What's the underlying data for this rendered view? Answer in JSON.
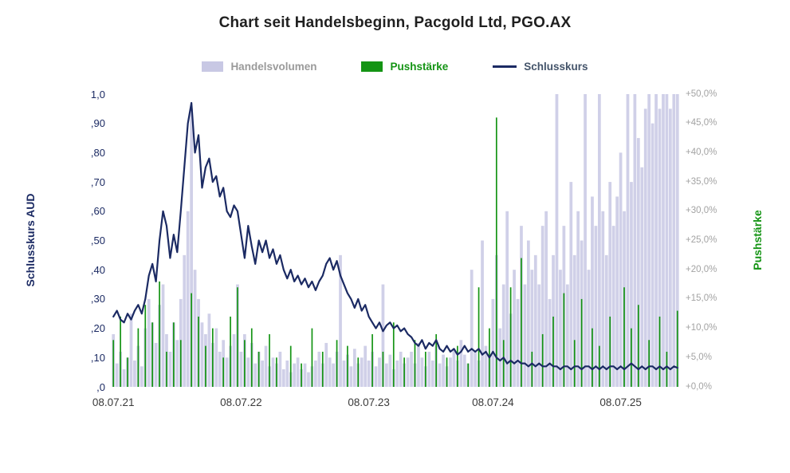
{
  "chart_data": {
    "type": "line",
    "subtype": "combo: volume bars (hidden axis) + push bars (right axis) + close line (left axis)",
    "title": "Chart seit Handelsbeginn, Pacgold Ltd, PGO.AX",
    "legend": [
      {
        "label": "Handelsvolumen",
        "color": "#c8c8e4",
        "swatch": "bar"
      },
      {
        "label": "Pushstärke",
        "color": "#149414",
        "swatch": "bar"
      },
      {
        "label": "Schlusskurs",
        "color": "#1b2a63",
        "swatch": "line"
      }
    ],
    "axes": {
      "left": {
        "title": "Schlusskurs AUD",
        "color": "#1b2a63",
        "min": 0,
        "max": 1.0,
        "ticks": [
          "1,0",
          ",90",
          ",80",
          ",70",
          ",60",
          ",50",
          ",40",
          ",30",
          ",20",
          ",10",
          ",0"
        ]
      },
      "right": {
        "title": "Pushstärke",
        "color": "#149414",
        "min": 0,
        "max": 50,
        "ticks": [
          "+50,0%",
          "+45,0%",
          "+40,0%",
          "+35,0%",
          "+30,0%",
          "+25,0%",
          "+20,0%",
          "+15,0%",
          "+10,0%",
          "+5,0%",
          "+0,0%"
        ]
      },
      "volume": {
        "min": 0,
        "max": 100,
        "note": "axis not shown, relative units"
      },
      "x": {
        "labels": [
          "08.07.21",
          "08.07.22",
          "08.07.23",
          "08.07.24",
          "08.07.25"
        ],
        "tick_indices": [
          0,
          36,
          72,
          107,
          143
        ],
        "grid": false
      }
    },
    "n_points": 160,
    "series": [
      {
        "id": "volume",
        "name": "Handelsvolumen",
        "kind": "bar",
        "axis": "volume",
        "color": "#c8c8e4",
        "values": [
          18,
          8,
          12,
          6,
          10,
          25,
          9,
          14,
          7,
          20,
          30,
          22,
          15,
          28,
          35,
          18,
          12,
          22,
          16,
          30,
          45,
          60,
          95,
          40,
          30,
          22,
          18,
          25,
          15,
          20,
          12,
          16,
          10,
          14,
          18,
          35,
          12,
          18,
          10,
          15,
          8,
          12,
          9,
          14,
          7,
          10,
          8,
          12,
          6,
          9,
          5,
          8,
          10,
          6,
          8,
          5,
          7,
          9,
          12,
          8,
          15,
          10,
          8,
          12,
          45,
          9,
          11,
          7,
          13,
          8,
          10,
          14,
          9,
          12,
          7,
          10,
          35,
          8,
          11,
          6,
          9,
          12,
          8,
          10,
          12,
          8,
          15,
          10,
          7,
          12,
          9,
          14,
          8,
          11,
          7,
          10,
          13,
          9,
          16,
          11,
          8,
          40,
          12,
          9,
          50,
          14,
          10,
          30,
          45,
          20,
          35,
          60,
          25,
          40,
          30,
          55,
          35,
          50,
          40,
          45,
          35,
          55,
          60,
          30,
          45,
          100,
          40,
          55,
          35,
          70,
          45,
          60,
          50,
          100,
          40,
          65,
          55,
          100,
          60,
          45,
          70,
          55,
          65,
          80,
          60,
          100,
          70,
          100,
          85,
          75,
          95,
          100,
          90,
          100,
          95,
          100,
          100,
          95,
          100,
          100
        ]
      },
      {
        "id": "push",
        "name": "Pushstärke",
        "kind": "bar",
        "axis": "right",
        "color": "#149414",
        "values": [
          8,
          0,
          12,
          0,
          5,
          0,
          0,
          10,
          0,
          14,
          0,
          11,
          0,
          18,
          0,
          6,
          0,
          11,
          0,
          8,
          0,
          0,
          16,
          0,
          12,
          0,
          7,
          0,
          10,
          0,
          0,
          5,
          0,
          12,
          0,
          17,
          0,
          8,
          0,
          10,
          0,
          6,
          0,
          0,
          9,
          0,
          5,
          0,
          0,
          0,
          7,
          0,
          0,
          4,
          0,
          0,
          10,
          0,
          0,
          6,
          0,
          0,
          0,
          8,
          0,
          0,
          7,
          0,
          0,
          5,
          0,
          0,
          0,
          9,
          0,
          0,
          6,
          0,
          0,
          11,
          0,
          0,
          5,
          0,
          0,
          8,
          0,
          0,
          6,
          0,
          0,
          9,
          0,
          0,
          5,
          0,
          0,
          7,
          0,
          0,
          4,
          0,
          0,
          17,
          0,
          0,
          10,
          0,
          46,
          0,
          8,
          0,
          17,
          0,
          0,
          22,
          0,
          0,
          6,
          0,
          0,
          9,
          0,
          0,
          12,
          0,
          0,
          16,
          0,
          0,
          8,
          0,
          15,
          0,
          0,
          10,
          0,
          7,
          0,
          0,
          12,
          0,
          0,
          0,
          17,
          0,
          10,
          0,
          14,
          0,
          0,
          8,
          0,
          0,
          12,
          0,
          6,
          0,
          0,
          13
        ]
      },
      {
        "id": "close",
        "name": "Schlusskurs",
        "kind": "line",
        "axis": "left",
        "color": "#1b2a63",
        "values": [
          0.24,
          0.26,
          0.23,
          0.22,
          0.25,
          0.23,
          0.26,
          0.28,
          0.25,
          0.3,
          0.38,
          0.42,
          0.36,
          0.5,
          0.6,
          0.55,
          0.44,
          0.52,
          0.46,
          0.6,
          0.75,
          0.9,
          0.97,
          0.8,
          0.86,
          0.68,
          0.75,
          0.78,
          0.7,
          0.72,
          0.65,
          0.68,
          0.6,
          0.58,
          0.62,
          0.6,
          0.52,
          0.44,
          0.55,
          0.48,
          0.42,
          0.5,
          0.46,
          0.5,
          0.44,
          0.47,
          0.42,
          0.45,
          0.4,
          0.37,
          0.4,
          0.36,
          0.38,
          0.35,
          0.37,
          0.34,
          0.36,
          0.33,
          0.36,
          0.38,
          0.42,
          0.44,
          0.4,
          0.43,
          0.38,
          0.35,
          0.32,
          0.3,
          0.27,
          0.3,
          0.26,
          0.28,
          0.24,
          0.22,
          0.2,
          0.22,
          0.19,
          0.21,
          0.22,
          0.2,
          0.21,
          0.19,
          0.2,
          0.18,
          0.17,
          0.15,
          0.14,
          0.16,
          0.13,
          0.15,
          0.14,
          0.16,
          0.13,
          0.12,
          0.14,
          0.12,
          0.13,
          0.11,
          0.12,
          0.14,
          0.12,
          0.13,
          0.12,
          0.13,
          0.11,
          0.12,
          0.1,
          0.12,
          0.1,
          0.09,
          0.1,
          0.08,
          0.09,
          0.08,
          0.09,
          0.08,
          0.08,
          0.07,
          0.08,
          0.07,
          0.08,
          0.07,
          0.07,
          0.08,
          0.07,
          0.07,
          0.06,
          0.07,
          0.07,
          0.06,
          0.07,
          0.07,
          0.06,
          0.07,
          0.07,
          0.06,
          0.07,
          0.06,
          0.07,
          0.06,
          0.07,
          0.07,
          0.06,
          0.07,
          0.06,
          0.07,
          0.08,
          0.07,
          0.06,
          0.07,
          0.06,
          0.07,
          0.07,
          0.06,
          0.07,
          0.06,
          0.07,
          0.06,
          0.07,
          0.065
        ]
      }
    ]
  }
}
